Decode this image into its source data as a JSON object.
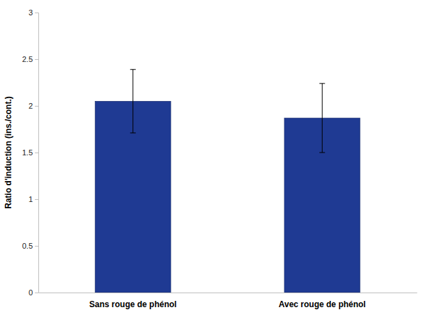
{
  "chart_data": {
    "type": "bar",
    "y_label": "Ratio d'induction (ins./cont.)",
    "categories": [
      "Sans rouge de phénol",
      "Avec rouge de phénol"
    ],
    "values": [
      2.05,
      1.87
    ],
    "errors": [
      0.34,
      0.37
    ],
    "color": "#1f3a93",
    "ylim": [
      0,
      3
    ],
    "yticks": [
      0,
      0.5,
      1,
      1.5,
      2,
      2.5,
      3
    ],
    "grid": false
  }
}
